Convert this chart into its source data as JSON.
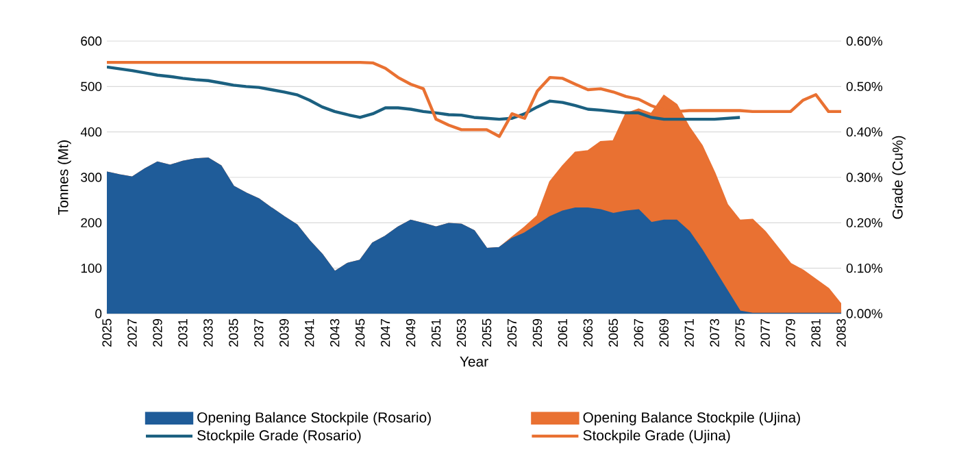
{
  "chart_data": {
    "type": "area",
    "xlabel": "Year",
    "ylabel": "Tonnes (Mt)",
    "y2label": "Grade (Cu%)",
    "categories": [
      "2025",
      null,
      "2027",
      null,
      "2029",
      null,
      "2031",
      null,
      "2033",
      null,
      "2035",
      null,
      "2037",
      null,
      "2039",
      null,
      "2041",
      null,
      "2043",
      null,
      "2045",
      null,
      "2047",
      null,
      "2049",
      null,
      "2051",
      null,
      "2053",
      null,
      "2055",
      null,
      "2057",
      null,
      "2059",
      null,
      "2061",
      null,
      "2063",
      null,
      "2065",
      null,
      "2067",
      null,
      "2069",
      null,
      "2071",
      null,
      "2073",
      null,
      "2075",
      null,
      "2077",
      null,
      "2079",
      null,
      "2081",
      null,
      "2083"
    ],
    "stacked": true,
    "grid": "y",
    "legend": "bottom",
    "ylim": [
      0,
      600
    ],
    "yticks": [
      0,
      100,
      200,
      300,
      400,
      500,
      600
    ],
    "y2lim": [
      0,
      0.6
    ],
    "y2ticks": [
      {
        "value": 0,
        "label": "0.00%"
      },
      {
        "value": 0.1,
        "label": "0.10%"
      },
      {
        "value": 0.2,
        "label": "0.20%"
      },
      {
        "value": 0.3,
        "label": "0.30%"
      },
      {
        "value": 0.4,
        "label": "0.40%"
      },
      {
        "value": 0.5,
        "label": "0.50%"
      },
      {
        "value": 0.6,
        "label": "0.60%"
      }
    ],
    "series": [
      {
        "name": "Opening Balance Stockpile (Rosario)",
        "color": "#1f5c99",
        "values": [
          311,
          305,
          300,
          318,
          333,
          326,
          335,
          340,
          342,
          325,
          280,
          265,
          252,
          232,
          213,
          195,
          160,
          130,
          92,
          110,
          117,
          155,
          170,
          190,
          205,
          198,
          190,
          198,
          196,
          182,
          143,
          145,
          165,
          177,
          195,
          213,
          225,
          232,
          232,
          228,
          220,
          225,
          228,
          200,
          205,
          205,
          180,
          140,
          95,
          50,
          5,
          0,
          0,
          0,
          0,
          0,
          0,
          0,
          0
        ]
      },
      {
        "name": "Opening Balance Stockpile (Ujina)",
        "color": "#e97132",
        "values": [
          0,
          0,
          0,
          0,
          0,
          0,
          0,
          0,
          0,
          0,
          0,
          0,
          0,
          0,
          0,
          0,
          0,
          0,
          0,
          0,
          0,
          0,
          0,
          0,
          0,
          0,
          0,
          0,
          0,
          0,
          0,
          0,
          3,
          13,
          20,
          77,
          100,
          123,
          126,
          150,
          160,
          215,
          222,
          240,
          275,
          255,
          230,
          230,
          215,
          190,
          200,
          207,
          180,
          145,
          110,
          95,
          75,
          55,
          20
        ]
      },
      {
        "name": "Stockpile Grade (Rosario)",
        "type": "line",
        "axis": "y2",
        "color": "#1b6080",
        "values": [
          0.543,
          0.539,
          0.535,
          0.53,
          0.525,
          0.522,
          0.518,
          0.515,
          0.513,
          0.508,
          0.503,
          0.5,
          0.498,
          0.493,
          0.488,
          0.482,
          0.47,
          0.455,
          0.445,
          0.438,
          0.432,
          0.44,
          0.453,
          0.453,
          0.45,
          0.445,
          0.442,
          0.438,
          0.437,
          0.432,
          0.43,
          0.428,
          0.43,
          0.44,
          0.455,
          0.468,
          0.465,
          0.458,
          0.45,
          0.448,
          0.445,
          0.442,
          0.442,
          0.432,
          0.428,
          0.428,
          0.428,
          0.428,
          0.428,
          0.43,
          0.432,
          null,
          null,
          null,
          null,
          null,
          null,
          null,
          null
        ]
      },
      {
        "name": "Stockpile Grade (Ujina)",
        "type": "line",
        "axis": "y2",
        "color": "#e97132",
        "values": [
          0.553,
          0.553,
          0.553,
          0.553,
          0.553,
          0.553,
          0.553,
          0.553,
          0.553,
          0.553,
          0.553,
          0.553,
          0.553,
          0.553,
          0.553,
          0.553,
          0.553,
          0.553,
          0.553,
          0.553,
          0.553,
          0.552,
          0.54,
          0.52,
          0.505,
          0.495,
          0.428,
          0.415,
          0.405,
          0.405,
          0.405,
          0.39,
          0.44,
          0.43,
          0.49,
          0.52,
          0.518,
          0.505,
          0.493,
          0.495,
          0.488,
          0.478,
          0.472,
          0.458,
          0.448,
          0.445,
          0.447,
          0.447,
          0.447,
          0.447,
          0.447,
          0.445,
          0.445,
          0.445,
          0.445,
          0.47,
          0.482,
          0.445,
          0.445
        ]
      }
    ]
  }
}
